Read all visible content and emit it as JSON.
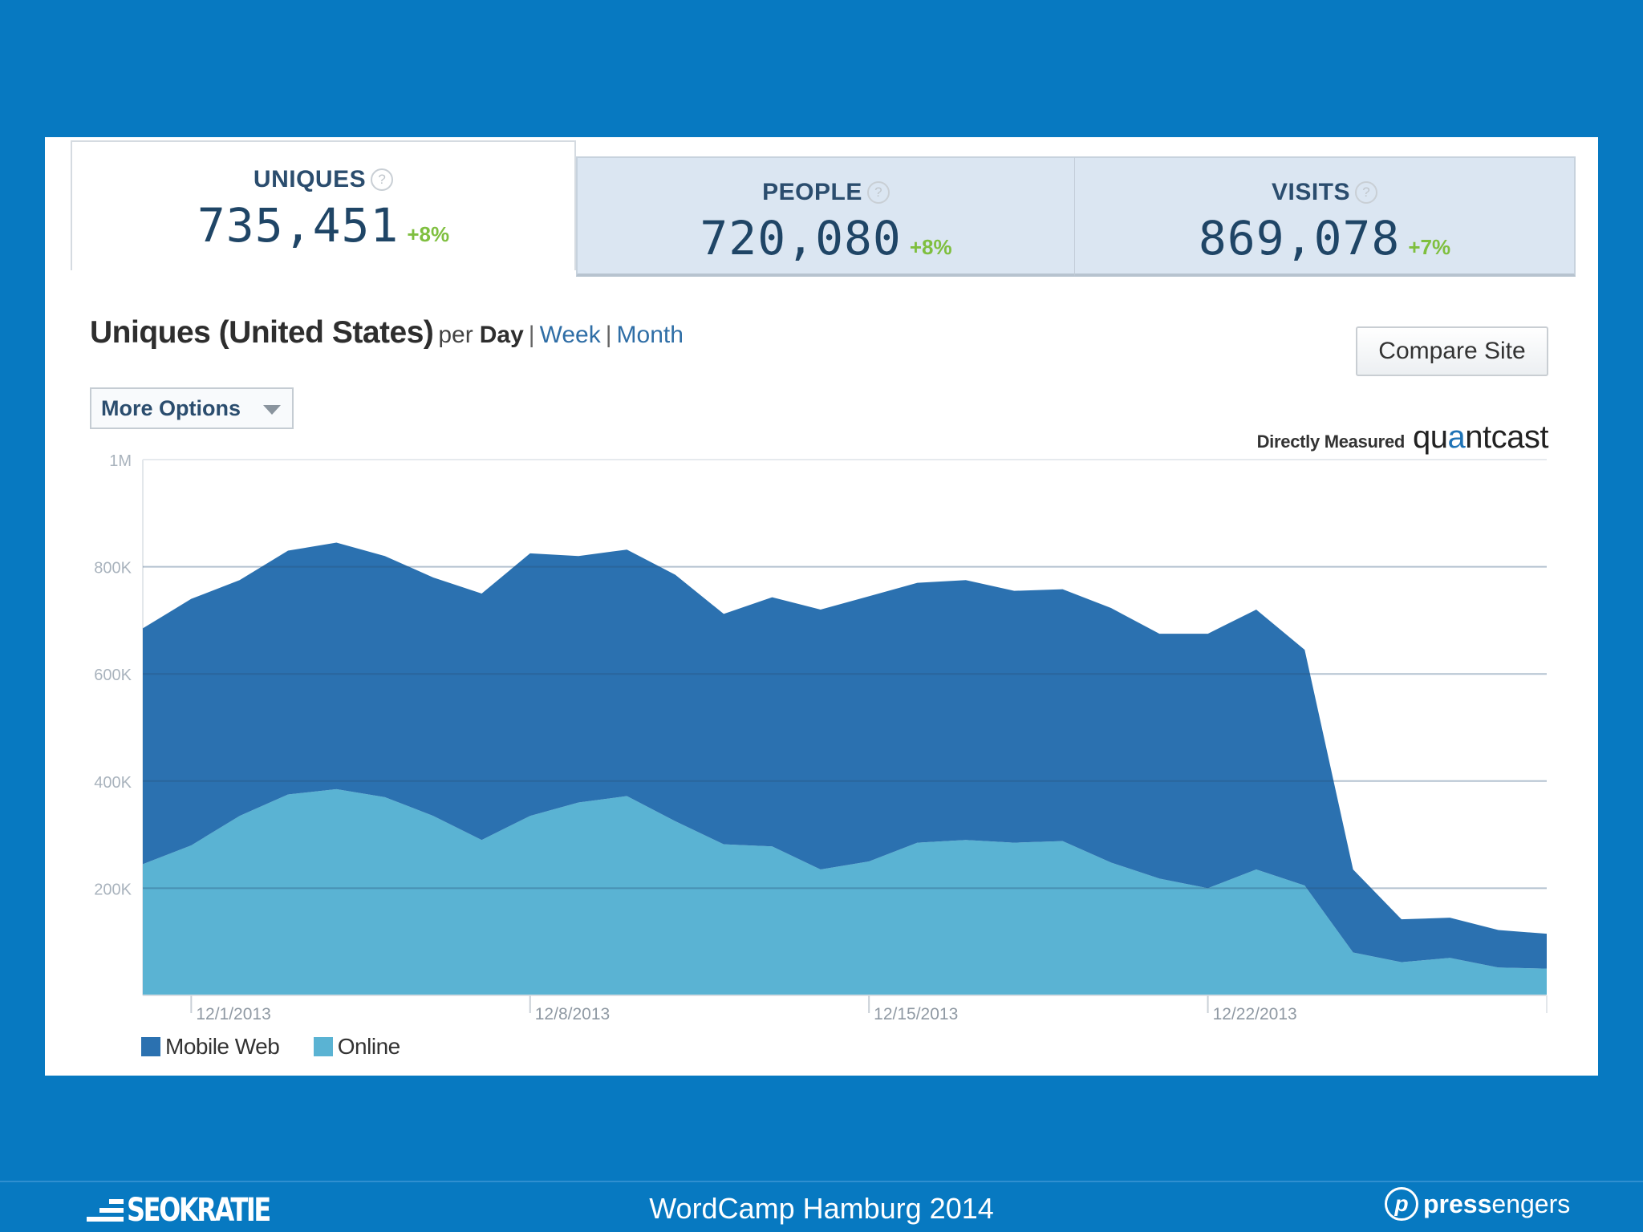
{
  "tabs": [
    {
      "title": "UNIQUES",
      "value": "735,451",
      "change": "+8%"
    },
    {
      "title": "PEOPLE",
      "value": "720,080",
      "change": "+8%"
    },
    {
      "title": "VISITS",
      "value": "869,078",
      "change": "+7%"
    }
  ],
  "help_icon_glyph": "?",
  "heading": {
    "title": "Uniques (United States)",
    "per": "per",
    "periods": [
      "Day",
      "Week",
      "Month"
    ],
    "separator": "|"
  },
  "compare_button": "Compare Site",
  "more_options": "More Options",
  "measured": {
    "text": "Directly Measured",
    "logo": "quantcast"
  },
  "chart_data": {
    "type": "area",
    "stacked": true,
    "y_ticks": [
      "1M",
      "800K",
      "600K",
      "400K",
      "200K"
    ],
    "y_tick_values": [
      1000000,
      800000,
      600000,
      400000,
      200000
    ],
    "ylim": [
      0,
      1000000
    ],
    "x_ticks": [
      "12/1/2013",
      "12/8/2013",
      "12/15/2013",
      "12/22/2013"
    ],
    "x_tick_indices": [
      1,
      8,
      15,
      22
    ],
    "grid": true,
    "legend_position": "bottom-left",
    "series": [
      {
        "name": "Online",
        "color": "#5ab3d3",
        "values": [
          245000,
          280000,
          335000,
          375000,
          385000,
          370000,
          335000,
          290000,
          335000,
          360000,
          372000,
          325000,
          282000,
          278000,
          235000,
          250000,
          285000,
          290000,
          285000,
          288000,
          248000,
          218000,
          200000,
          235000,
          205000,
          80000,
          62000,
          70000,
          52000,
          50000
        ]
      },
      {
        "name": "Mobile Web",
        "color": "#2b71b0",
        "values": [
          440000,
          460000,
          440000,
          455000,
          460000,
          450000,
          445000,
          460000,
          490000,
          460000,
          460000,
          460000,
          430000,
          465000,
          485000,
          495000,
          485000,
          485000,
          470000,
          470000,
          475000,
          457000,
          475000,
          485000,
          440000,
          155000,
          80000,
          75000,
          70000,
          65000
        ]
      }
    ]
  },
  "legend": [
    {
      "label": "Mobile Web",
      "color": "#2b71b0"
    },
    {
      "label": "Online",
      "color": "#5ab3d3"
    }
  ],
  "footer": {
    "center": "WordCamp Hamburg 2014",
    "left_logo": "SEOKRATIE",
    "right_logo_icon": "p",
    "right_logo_bold": "press",
    "right_logo_rest": "engers"
  },
  "colors": {
    "background": "#0779c1",
    "panel": "#ffffff",
    "tab_inactive": "#dbe6f2"
  }
}
